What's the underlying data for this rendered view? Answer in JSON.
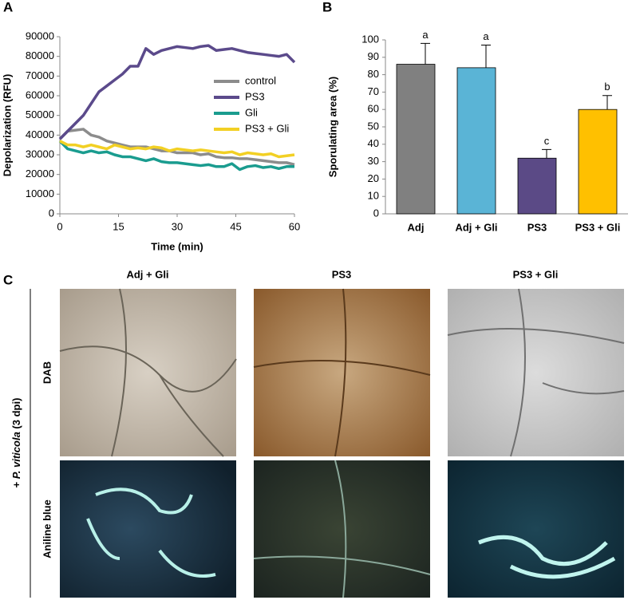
{
  "panel_labels": [
    "A",
    "B",
    "C"
  ],
  "chart_data": [
    {
      "type": "line",
      "xlabel": "Time (min)",
      "ylabel": "Depolarization (RFU)",
      "x": [
        0,
        2,
        4,
        6,
        8,
        10,
        12,
        14,
        16,
        18,
        20,
        22,
        24,
        26,
        28,
        30,
        32,
        34,
        36,
        38,
        40,
        42,
        44,
        46,
        48,
        50,
        52,
        54,
        56,
        58,
        60
      ],
      "xlim": [
        0,
        60
      ],
      "xticks": [
        0,
        15,
        30,
        45,
        60
      ],
      "ylim": [
        0,
        90000
      ],
      "yticks": [
        0,
        10000,
        20000,
        30000,
        40000,
        50000,
        60000,
        70000,
        80000,
        90000
      ],
      "series": [
        {
          "name": "control",
          "color": "#8c8c8c",
          "values": [
            38000,
            42000,
            42500,
            43000,
            40000,
            39000,
            37000,
            36000,
            35000,
            34000,
            34000,
            34000,
            33000,
            32000,
            32000,
            31000,
            31000,
            31000,
            30000,
            30500,
            29000,
            28500,
            28500,
            28000,
            28000,
            27500,
            27000,
            26500,
            26000,
            26000,
            25000
          ]
        },
        {
          "name": "PS3",
          "color": "#5b4a8b",
          "values": [
            38000,
            42000,
            46000,
            50000,
            56000,
            62000,
            65000,
            68000,
            71000,
            75000,
            75000,
            84000,
            81000,
            83000,
            84000,
            85000,
            84500,
            84000,
            85000,
            85500,
            83000,
            83500,
            84000,
            83000,
            82000,
            81500,
            81000,
            80500,
            80000,
            81000,
            77000
          ]
        },
        {
          "name": "Gli",
          "color": "#1a9c8f",
          "values": [
            37000,
            33000,
            32000,
            31000,
            32000,
            31000,
            31500,
            30000,
            29000,
            29000,
            28000,
            27000,
            28000,
            26500,
            26000,
            26000,
            25500,
            25000,
            24500,
            25000,
            24000,
            24000,
            25500,
            22500,
            24000,
            24500,
            23500,
            24000,
            23000,
            24000,
            24000
          ]
        },
        {
          "name": "PS3 + Gli",
          "color": "#f2d024",
          "values": [
            37000,
            35000,
            35000,
            34000,
            35000,
            34000,
            33000,
            35000,
            34000,
            33000,
            33500,
            33000,
            34000,
            33500,
            32000,
            33000,
            32500,
            32000,
            32500,
            32000,
            31500,
            31000,
            31500,
            30000,
            31000,
            30500,
            30000,
            30500,
            29000,
            29500,
            30000
          ]
        }
      ]
    },
    {
      "type": "bar",
      "ylabel": "Sporulating area (%)",
      "categories": [
        "Adj",
        "Adj + Gli",
        "PS3",
        "PS3 + Gli"
      ],
      "values": [
        86,
        84,
        32,
        60
      ],
      "errors": [
        12,
        13,
        5,
        8
      ],
      "annotations": [
        "a",
        "a",
        "c",
        "b"
      ],
      "colors": [
        "#808080",
        "#5ab4d6",
        "#5b4a86",
        "#ffc000"
      ],
      "ylim": [
        0,
        100
      ],
      "yticks": [
        0,
        10,
        20,
        30,
        40,
        50,
        60,
        70,
        80,
        90,
        100
      ]
    }
  ],
  "panel_c": {
    "columns": [
      "Adj + Gli",
      "PS3",
      "PS3 + Gli"
    ],
    "rows": [
      "DAB",
      "Aniline blue"
    ],
    "side_label": [
      "+ ",
      "P. viticola",
      " (3 dpi)"
    ]
  }
}
